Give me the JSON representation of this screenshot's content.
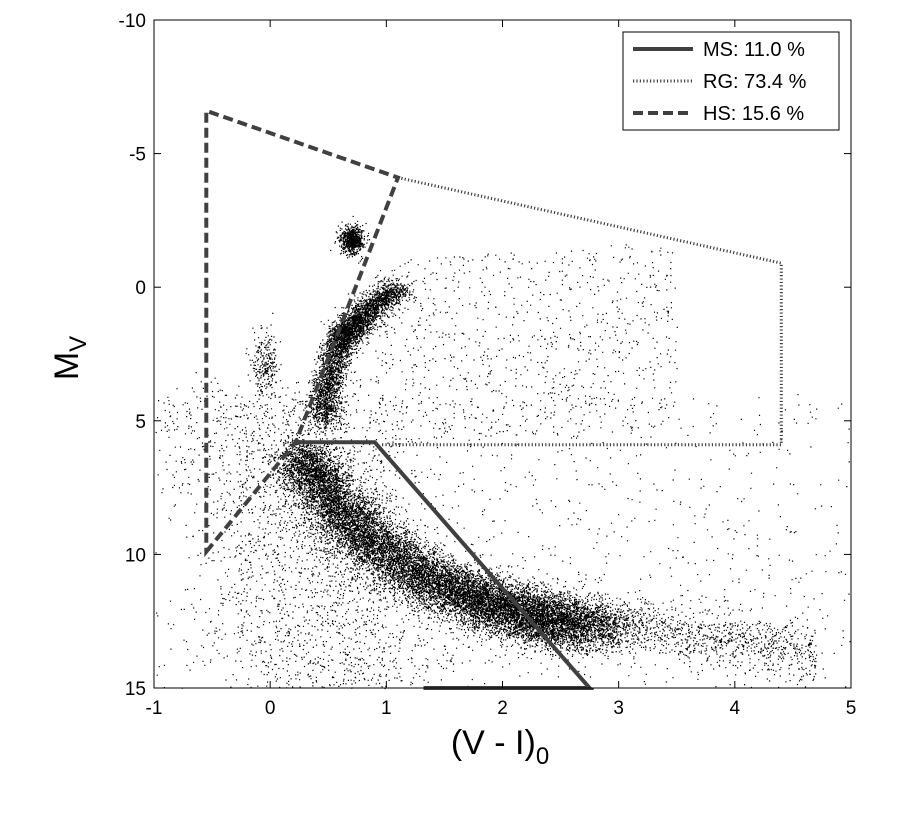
{
  "chart_data": {
    "type": "scatter",
    "xlabel": "(V - I)",
    "xlabel_subscript": "0",
    "ylabel": "M",
    "ylabel_subscript": "V",
    "xlim": [
      -1,
      5
    ],
    "ylim": [
      15,
      -10
    ],
    "y_inverted": true,
    "x_ticks": [
      -1,
      0,
      1,
      2,
      3,
      4,
      5
    ],
    "y_ticks": [
      -10,
      -5,
      0,
      5,
      10,
      15
    ],
    "grid": false,
    "legend_position": "top-right",
    "colors": {
      "points": "#000000",
      "regions": "#404040"
    },
    "scatter_description": {
      "main_sequence_ridge": [
        [
          0.25,
          6
        ],
        [
          0.45,
          7.5
        ],
        [
          0.8,
          9.3
        ],
        [
          1.3,
          10.8
        ],
        [
          1.8,
          11.7
        ],
        [
          2.3,
          12.3
        ],
        [
          2.7,
          12.9
        ]
      ],
      "giant_branch_ridge": [
        [
          0.45,
          5
        ],
        [
          0.5,
          3.5
        ],
        [
          0.6,
          2
        ],
        [
          0.7,
          1.5
        ],
        [
          0.85,
          0.8
        ],
        [
          1.1,
          0
        ]
      ],
      "red_clump": [
        0.7,
        -1.8
      ]
    },
    "series": [
      {
        "name": "MS: 11.0 %",
        "label": "MS",
        "percent": 11.0,
        "style": "solid",
        "polygon": [
          [
            0.22,
            5.8
          ],
          [
            0.9,
            5.8
          ],
          [
            2.75,
            15
          ],
          [
            1.32,
            15
          ]
        ],
        "closed": false
      },
      {
        "name": "RG: 73.4 %",
        "label": "RG",
        "percent": 73.4,
        "style": "dotted",
        "polygon": [
          [
            1.1,
            -4.1
          ],
          [
            4.4,
            -0.9
          ],
          [
            4.4,
            5.9
          ],
          [
            0.95,
            5.9
          ]
        ],
        "closed": false
      },
      {
        "name": "HS: 15.6 %",
        "label": "HS",
        "percent": 15.6,
        "style": "dashed",
        "polygon": [
          [
            -0.55,
            9.9
          ],
          [
            0.22,
            5.8
          ],
          [
            1.1,
            -4.1
          ],
          [
            -0.55,
            -6.6
          ]
        ],
        "closed": true
      }
    ]
  }
}
